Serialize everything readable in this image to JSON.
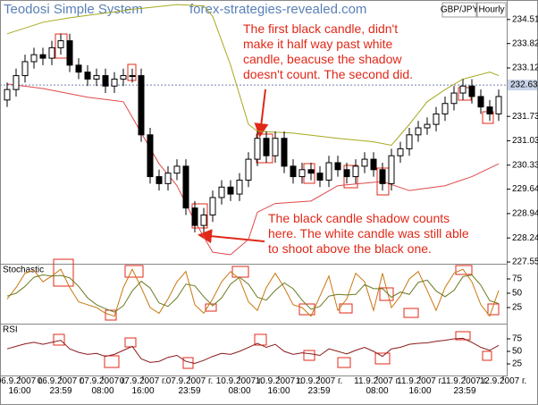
{
  "chart_data": [
    {
      "type": "candlestick",
      "title": "Teodosi Simple System",
      "watermark": "forex-strategies-revealed.com",
      "symbol": "GBP/JPY",
      "timeframe": "Hourly",
      "up_color": "#ffffff",
      "down_color": "#000000",
      "open": [
        232.2,
        232.5,
        232.9,
        233.3,
        233.5,
        233.4,
        233.7,
        233.9,
        233.2,
        233.0,
        232.8,
        232.9,
        232.6,
        232.8,
        232.9,
        232.9,
        231.2,
        230.0,
        229.8,
        230.1,
        230.3,
        229.1,
        228.6,
        228.9,
        229.4,
        229.7,
        229.5,
        229.9,
        230.5,
        231.1,
        230.6,
        231.1,
        230.3,
        230.0,
        230.2,
        230.1,
        229.9,
        230.4,
        230.2,
        230.0,
        230.3,
        230.5,
        230.2,
        229.8,
        230.6,
        230.8,
        231.2,
        231.4,
        231.5,
        231.8,
        232.1,
        232.4,
        232.6,
        232.3,
        232.0,
        231.8
      ],
      "high": [
        232.7,
        233.1,
        233.5,
        233.7,
        233.7,
        233.9,
        234.1,
        234.1,
        233.4,
        233.2,
        233.1,
        233.1,
        233.0,
        233.1,
        233.1,
        233.1,
        231.4,
        230.2,
        230.3,
        230.5,
        230.5,
        229.3,
        229.1,
        229.6,
        229.9,
        229.9,
        230.1,
        230.7,
        231.3,
        231.3,
        231.3,
        231.3,
        230.5,
        230.4,
        230.4,
        230.3,
        230.6,
        230.6,
        230.4,
        230.5,
        230.7,
        230.7,
        230.4,
        230.8,
        231.0,
        231.4,
        231.6,
        231.7,
        232.0,
        232.3,
        232.6,
        232.8,
        232.8,
        232.5,
        232.2,
        232.5
      ],
      "low": [
        232.0,
        232.3,
        232.7,
        233.1,
        233.2,
        233.2,
        233.5,
        233.0,
        232.8,
        232.6,
        232.6,
        232.4,
        232.4,
        232.6,
        232.7,
        231.0,
        229.8,
        229.6,
        229.6,
        229.9,
        228.9,
        228.4,
        228.4,
        228.7,
        229.2,
        229.3,
        229.3,
        229.7,
        230.3,
        230.4,
        230.4,
        230.1,
        229.8,
        229.8,
        229.9,
        229.7,
        229.7,
        230.0,
        229.8,
        229.8,
        230.1,
        230.0,
        229.6,
        229.6,
        230.4,
        230.6,
        231.0,
        231.2,
        231.3,
        231.6,
        231.9,
        232.2,
        232.1,
        231.8,
        231.6,
        231.6
      ],
      "close": [
        232.5,
        232.9,
        233.3,
        233.5,
        233.4,
        233.7,
        233.9,
        233.2,
        233.0,
        232.8,
        232.9,
        232.6,
        232.8,
        232.9,
        232.9,
        231.2,
        230.0,
        229.8,
        230.1,
        230.3,
        229.1,
        228.6,
        228.9,
        229.4,
        229.7,
        229.5,
        229.9,
        230.5,
        231.1,
        230.6,
        231.1,
        230.3,
        230.0,
        230.2,
        230.1,
        229.9,
        230.4,
        230.2,
        230.0,
        230.3,
        230.5,
        230.2,
        229.8,
        230.6,
        230.8,
        231.2,
        231.4,
        231.5,
        231.8,
        232.1,
        232.4,
        232.6,
        232.3,
        232.0,
        231.8,
        232.3
      ],
      "bands": [
        {
          "color": "#a8a820",
          "x": [
            0,
            4,
            7,
            14,
            19,
            22,
            23,
            25,
            27,
            28,
            32,
            37,
            41,
            43,
            45,
            47,
            49,
            51,
            54,
            55
          ],
          "values": [
            234.1,
            234.43,
            234.56,
            234.8,
            234.94,
            234.9,
            234.6,
            233.2,
            231.5,
            231.3,
            231.25,
            231.1,
            231.0,
            230.9,
            231.5,
            232.15,
            232.5,
            232.8,
            233.0,
            232.9
          ]
        },
        {
          "color": "#e04848",
          "x": [
            0,
            4,
            9,
            13,
            15,
            17,
            19,
            21,
            23,
            25,
            27,
            28,
            30,
            34,
            37,
            42,
            45,
            49,
            52,
            55
          ],
          "values": [
            232.66,
            232.53,
            232.28,
            232.15,
            231.26,
            230.37,
            229.74,
            228.72,
            227.83,
            227.76,
            228.2,
            228.98,
            229.23,
            229.3,
            229.74,
            229.86,
            229.6,
            229.74,
            230.0,
            230.37
          ]
        }
      ],
      "ylim": [
        227.5,
        235.07
      ],
      "yticks": [
        234.51,
        233.82,
        233.12,
        231.73,
        231.03,
        230.33,
        229.64,
        228.94,
        228.24,
        227.55
      ],
      "last_price": 232.63,
      "xticks": [
        {
          "value": 1.4,
          "label": "06.9.2007 г.\n16:00"
        },
        {
          "value": 6,
          "label": "06.9.2007 г.\n23:59"
        },
        {
          "value": 10.7,
          "label": "07.9.2007 г.\n08:00"
        },
        {
          "value": 15.2,
          "label": "07.9.2007 г.\n16:00"
        },
        {
          "value": 20.4,
          "label": "07.9.2007 г.\n23:59"
        },
        {
          "value": 26,
          "label": "10.9.2007 г.\n08:00"
        },
        {
          "value": 30.4,
          "label": "10.9.2007 г.\n16:00"
        },
        {
          "value": 34.9,
          "label": "10.9.2007 г.\n23:59"
        },
        {
          "value": 41.4,
          "label": "11.9.2007 г.\n08:00"
        },
        {
          "value": 46.2,
          "label": "11.9.2007 г.\n16:00"
        },
        {
          "value": 51.2,
          "label": "11.9.2007 г.\n23:59"
        },
        {
          "value": 55.5,
          "label": "12.9.2007 г."
        }
      ],
      "annotation_color": "#e02818",
      "annotations": [
        {
          "lines": [
            "The first black candle, didn't",
            "make it half way past white",
            "candle, beacuse the shadow",
            "doesn't count. The second did."
          ]
        },
        {
          "lines": [
            "The black candle shadow counts",
            "here. The white candle was still able",
            "to shoot above the black one."
          ]
        }
      ]
    },
    {
      "type": "line",
      "title": "Stochastic",
      "ylim": [
        0,
        100
      ],
      "yticks": [
        75,
        50,
        25
      ],
      "series": [
        {
          "color": "#c87810",
          "values": [
            40,
            60,
            85,
            90,
            70,
            80,
            92,
            60,
            35,
            30,
            25,
            15,
            10,
            60,
            92,
            60,
            25,
            15,
            40,
            70,
            88,
            30,
            15,
            40,
            70,
            88,
            75,
            35,
            20,
            60,
            85,
            60,
            30,
            25,
            10,
            45,
            80,
            20,
            40,
            85,
            70,
            20,
            85,
            25,
            45,
            75,
            88,
            55,
            20,
            60,
            85,
            92,
            70,
            30,
            10,
            55
          ]
        },
        {
          "color": "#6a7a20",
          "values": [
            45,
            50,
            62,
            78,
            82,
            80,
            81,
            77,
            62,
            42,
            30,
            23,
            17,
            28,
            54,
            71,
            59,
            33,
            27,
            42,
            66,
            63,
            44,
            28,
            42,
            66,
            78,
            66,
            43,
            38,
            55,
            68,
            58,
            38,
            22,
            27,
            45,
            48,
            47,
            48,
            65,
            58,
            58,
            43,
            52,
            48,
            69,
            73,
            54,
            44,
            55,
            79,
            82,
            64,
            37,
            32
          ]
        }
      ]
    },
    {
      "type": "line",
      "title": "RSI",
      "ylim": [
        0,
        100
      ],
      "yticks": [
        75,
        50,
        25
      ],
      "series": [
        {
          "color": "#8b1a1a",
          "values": [
            55,
            60,
            65,
            68,
            64,
            68,
            72,
            55,
            48,
            44,
            46,
            40,
            44,
            52,
            60,
            35,
            28,
            30,
            38,
            42,
            30,
            26,
            32,
            40,
            46,
            44,
            50,
            58,
            66,
            58,
            64,
            50,
            44,
            47,
            45,
            42,
            55,
            50,
            45,
            52,
            58,
            50,
            40,
            55,
            58,
            64,
            66,
            67,
            70,
            72,
            75,
            76,
            68,
            58,
            52,
            62
          ]
        }
      ]
    }
  ]
}
